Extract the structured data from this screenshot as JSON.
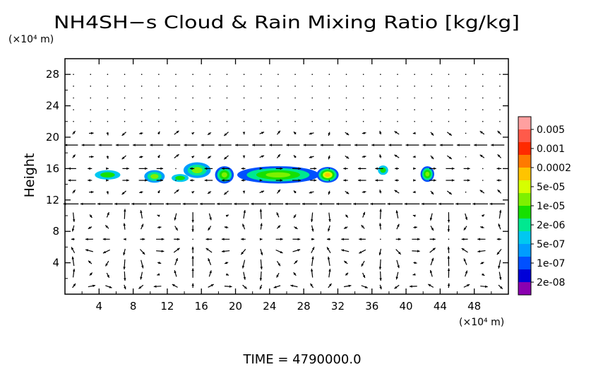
{
  "chart_data": {
    "type": "heatmap",
    "title": "NH4SH−s Cloud & Rain Mixing Ratio [kg/kg]",
    "ylabel": "Height",
    "yunit": "(×10⁴ m)",
    "xunit": "(×10⁴ m)",
    "xlim": [
      0,
      52
    ],
    "ylim": [
      0,
      30
    ],
    "x_ticks": [
      "4",
      "8",
      "12",
      "16",
      "20",
      "24",
      "28",
      "32",
      "36",
      "40",
      "44",
      "48"
    ],
    "x_tick_values": [
      4,
      8,
      12,
      16,
      20,
      24,
      28,
      32,
      36,
      40,
      44,
      48
    ],
    "y_ticks": [
      "4",
      "8",
      "12",
      "16",
      "20",
      "24",
      "28"
    ],
    "y_tick_values": [
      4,
      8,
      12,
      16,
      20,
      24,
      28
    ],
    "colorbar": {
      "labels": [
        "0.005",
        "0.001",
        "0.0002",
        "5e-05",
        "1e-05",
        "2e-06",
        "5e-07",
        "1e-07",
        "2e-08"
      ],
      "colors": [
        "#ffa0a0",
        "#ff5a4a",
        "#ff2a00",
        "#ff7a00",
        "#ffc400",
        "#d6ff00",
        "#7ef000",
        "#16e000",
        "#00e890",
        "#00c8f0",
        "#009cff",
        "#0050ff",
        "#0000d8",
        "#8a00b0"
      ]
    },
    "cloud_regions": [
      {
        "x": 5,
        "y": 15.2,
        "rx": 1.5,
        "ry": 0.6,
        "level": 2
      },
      {
        "x": 10.5,
        "y": 15.0,
        "rx": 1.2,
        "ry": 0.8,
        "level": 3
      },
      {
        "x": 13.5,
        "y": 14.8,
        "rx": 1.0,
        "ry": 0.5,
        "level": 2
      },
      {
        "x": 15.5,
        "y": 15.8,
        "rx": 1.6,
        "ry": 1.0,
        "level": 3
      },
      {
        "x": 18.7,
        "y": 15.2,
        "rx": 1.1,
        "ry": 1.1,
        "level": 4
      },
      {
        "x": 25.0,
        "y": 15.2,
        "rx": 4.8,
        "ry": 1.1,
        "level": 4
      },
      {
        "x": 30.8,
        "y": 15.2,
        "rx": 1.3,
        "ry": 1.0,
        "level": 5
      },
      {
        "x": 37.3,
        "y": 15.8,
        "rx": 0.6,
        "ry": 0.6,
        "level": 2
      },
      {
        "x": 42.5,
        "y": 15.3,
        "rx": 0.8,
        "ry": 1.0,
        "level": 4
      }
    ],
    "grid": false
  },
  "footer": {
    "time_label": "TIME  =  4790000.0"
  }
}
